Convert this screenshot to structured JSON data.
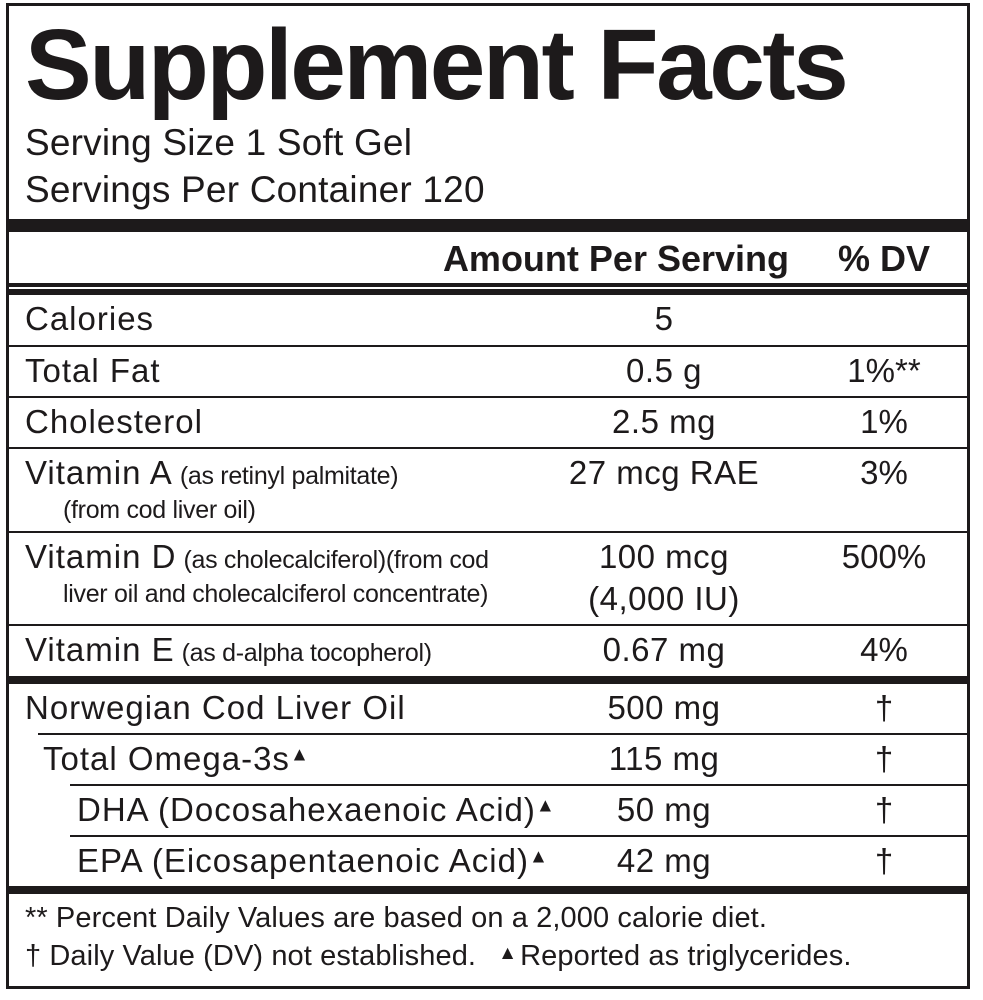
{
  "header": {
    "title": "Supplement Facts",
    "serving_size": "Serving Size 1 Soft Gel",
    "servings_per_container": "Servings Per Container 120"
  },
  "table": {
    "amount_header": "Amount Per Serving",
    "dv_header": "% DV",
    "rows": [
      {
        "name": "Calories",
        "amount": "5",
        "dv": ""
      },
      {
        "name": "Total Fat",
        "amount": "0.5 g",
        "dv": "1%**"
      },
      {
        "name": "Cholesterol",
        "amount": "2.5 mg",
        "dv": "1%"
      },
      {
        "name": "Vitamin A",
        "paren": "(as retinyl palmitate)",
        "name2": "(from cod liver oil)",
        "amount": "27 mcg RAE",
        "dv": "3%"
      },
      {
        "name": "Vitamin D",
        "paren": "(as cholecalciferol)(from cod",
        "name2": "liver oil and cholecalciferol concentrate)",
        "amount": "100 mcg",
        "amount2": "(4,000 IU)",
        "dv": "500%"
      },
      {
        "name": "Vitamin E",
        "paren": "(as d-alpha tocopherol)",
        "amount": "0.67 mg",
        "dv": "4%"
      },
      {
        "name": "Norwegian Cod Liver Oil",
        "amount": "500 mg",
        "dv": "†"
      },
      {
        "name": "Total Omega-3s",
        "mark": "▲",
        "amount": "115 mg",
        "dv": "†"
      },
      {
        "name": "DHA (Docosahexaenoic Acid)",
        "mark": "▲",
        "amount": "50 mg",
        "dv": "†"
      },
      {
        "name": "EPA (Eicosapentaenoic Acid)",
        "mark": "▲",
        "amount": "42 mg",
        "dv": "†"
      }
    ]
  },
  "footnotes": {
    "line1": "** Percent Daily Values are based on a 2,000 calorie diet.",
    "line2_dagger": "† Daily Value (DV) not established.",
    "line2_mark": "▲",
    "line2_text": "Reported as triglycerides."
  },
  "colors": {
    "ink": "#1d1a1b",
    "background": "#ffffff"
  }
}
